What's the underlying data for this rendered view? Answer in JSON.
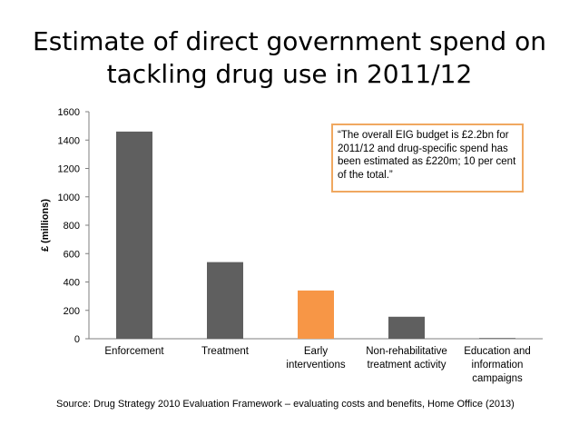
{
  "title_line1": "Estimate of direct government spend on",
  "title_line2": "tackling drug use in 2011/12",
  "source": "Source: Drug Strategy 2010 Evaluation Framework – evaluating costs and benefits, Home Office (2013)",
  "callout": "“The overall EIG budget is £2.2bn for 2011/12 and drug-specific spend has been estimated as £220m; 10 per cent of the total.”",
  "chart_data": {
    "type": "bar",
    "ylabel": "£ (millions)",
    "xlabel": "",
    "ylim": [
      0,
      1600
    ],
    "yticks": [
      0,
      200,
      400,
      600,
      800,
      1000,
      1200,
      1400,
      1600
    ],
    "grid": false,
    "categories": [
      [
        "Enforcement"
      ],
      [
        "Treatment"
      ],
      [
        "Early",
        "interventions"
      ],
      [
        "Non-rehabilitative",
        "treatment activity"
      ],
      [
        "Education and",
        "information",
        "campaigns"
      ]
    ],
    "values": [
      1460,
      540,
      340,
      155,
      5
    ],
    "bar_colors": [
      "#5f5f5f",
      "#5f5f5f",
      "#f79646",
      "#5f5f5f",
      "#5f5f5f"
    ]
  }
}
